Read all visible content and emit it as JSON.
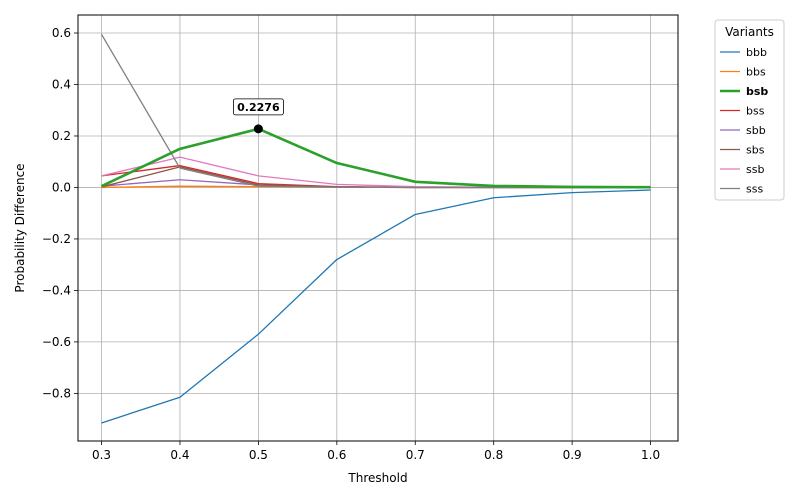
{
  "chart_data": {
    "type": "line",
    "title": "",
    "xlabel": "Threshold",
    "ylabel": "Probability Difference",
    "x": [
      0.3,
      0.4,
      0.5,
      0.6,
      0.7,
      0.8,
      0.9,
      1.0
    ],
    "xlim": [
      0.27,
      1.035
    ],
    "ylim": [
      -0.985,
      0.67
    ],
    "xticks": [
      "0.3",
      "0.4",
      "0.5",
      "0.6",
      "0.7",
      "0.8",
      "0.9",
      "1.0"
    ],
    "yticks": [
      "0.6",
      "0.4",
      "0.2",
      "0.0",
      "−0.2",
      "−0.4",
      "−0.6",
      "−0.8"
    ],
    "ytick_values": [
      0.6,
      0.4,
      0.2,
      0.0,
      -0.2,
      -0.4,
      -0.6,
      -0.8
    ],
    "grid": true,
    "legend": {
      "title": "Variants",
      "placement": "outside-right-top"
    },
    "series": [
      {
        "name": "bbb",
        "color": "#1f77b4",
        "values": [
          -0.915,
          -0.815,
          -0.57,
          -0.28,
          -0.105,
          -0.04,
          -0.02,
          -0.01
        ]
      },
      {
        "name": "bbs",
        "color": "#ff7f0e",
        "values": [
          0.0,
          0.005,
          0.003,
          0.001,
          0.0,
          0.0,
          0.0,
          0.0
        ]
      },
      {
        "name": "bsb",
        "color": "#2ca02c",
        "bold": true,
        "values": [
          0.005,
          0.15,
          0.2276,
          0.095,
          0.022,
          0.006,
          0.002,
          0.001
        ]
      },
      {
        "name": "bss",
        "color": "#d62728",
        "values": [
          0.045,
          0.085,
          0.015,
          0.003,
          0.001,
          0.0,
          0.0,
          0.0
        ]
      },
      {
        "name": "sbb",
        "color": "#9467bd",
        "values": [
          0.005,
          0.03,
          0.01,
          0.002,
          0.0,
          0.0,
          0.0,
          0.0
        ]
      },
      {
        "name": "sbs",
        "color": "#8c564b",
        "values": [
          0.002,
          0.08,
          0.01,
          0.002,
          0.0,
          0.0,
          0.0,
          0.0
        ]
      },
      {
        "name": "ssb",
        "color": "#e377c2",
        "values": [
          0.045,
          0.118,
          0.045,
          0.012,
          0.003,
          0.001,
          0.0,
          0.0
        ]
      },
      {
        "name": "sss",
        "color": "#7f7f7f",
        "values": [
          0.595,
          0.075,
          0.005,
          0.001,
          0.0,
          0.0,
          0.0,
          0.0
        ]
      }
    ],
    "annotation": {
      "text": "0.2276",
      "x": 0.5,
      "y": 0.2276,
      "series": "bsb"
    }
  }
}
